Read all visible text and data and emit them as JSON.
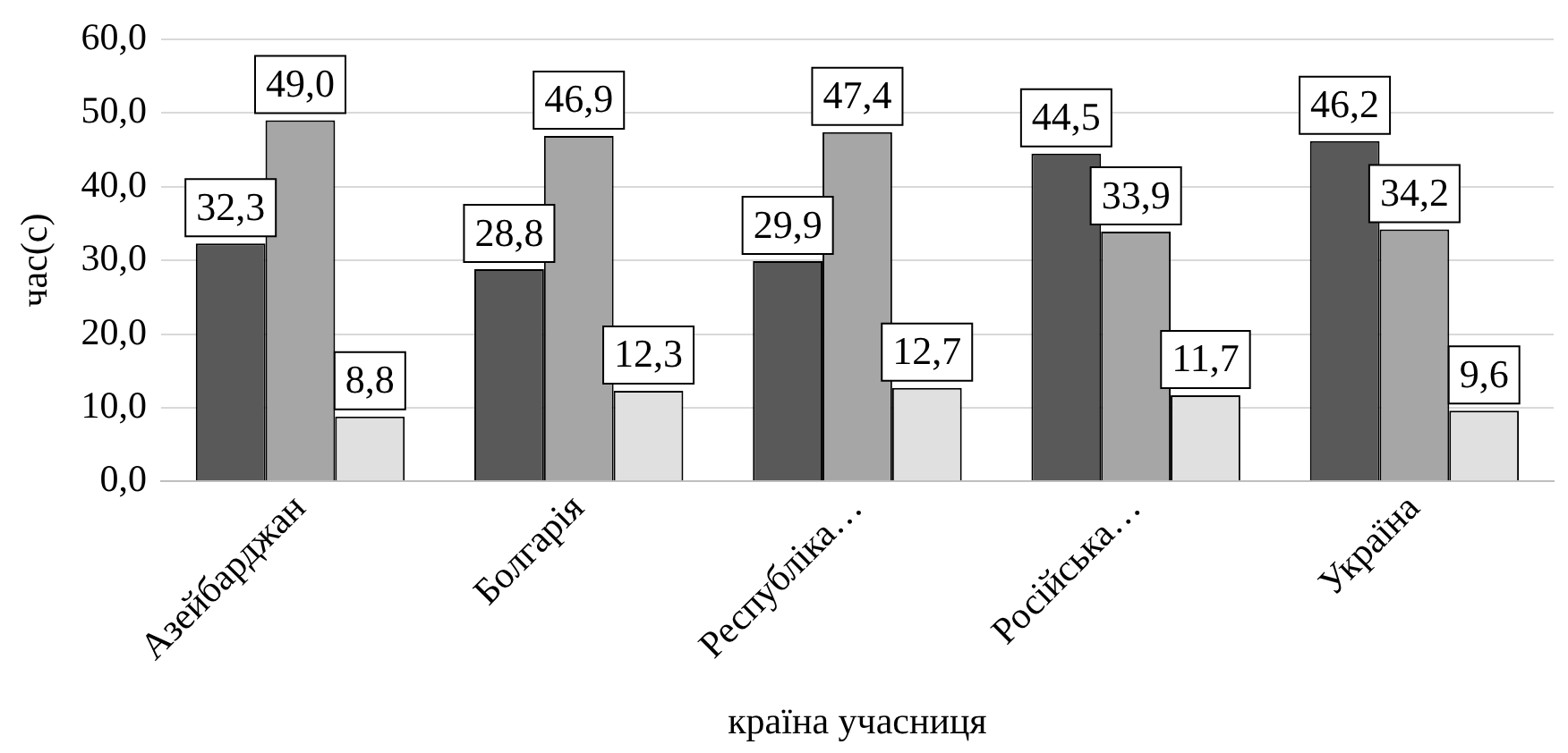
{
  "chart_data": {
    "type": "bar",
    "xlabel": "країна учасниця",
    "ylabel": "час(с)",
    "categories": [
      "Азейбарджан",
      "Болгарія",
      "Республіка…",
      "Російська…",
      "Україна"
    ],
    "series": [
      {
        "color": "#595959",
        "values": [
          32.3,
          28.8,
          29.9,
          44.5,
          46.2
        ],
        "value_labels": [
          "32,3",
          "28,8",
          "29,9",
          "44,5",
          "46,2"
        ]
      },
      {
        "color": "#a6a6a6",
        "values": [
          49.0,
          46.9,
          47.4,
          33.9,
          34.2
        ],
        "value_labels": [
          "49,0",
          "46,9",
          "47,4",
          "33,9",
          "34,2"
        ]
      },
      {
        "color": "#e0e0e0",
        "values": [
          8.8,
          12.3,
          12.7,
          11.7,
          9.6
        ],
        "value_labels": [
          "8,8",
          "12,3",
          "12,7",
          "11,7",
          "9,6"
        ]
      }
    ],
    "ylim": [
      0,
      60
    ],
    "yticks": [
      {
        "value": 0,
        "label": "0,0"
      },
      {
        "value": 10,
        "label": "10,0"
      },
      {
        "value": 20,
        "label": "20,0"
      },
      {
        "value": 30,
        "label": "30,0"
      },
      {
        "value": 40,
        "label": "40,0"
      },
      {
        "value": 50,
        "label": "50,0"
      },
      {
        "value": 60,
        "label": "60,0"
      }
    ],
    "grid": "y",
    "legend": false
  }
}
